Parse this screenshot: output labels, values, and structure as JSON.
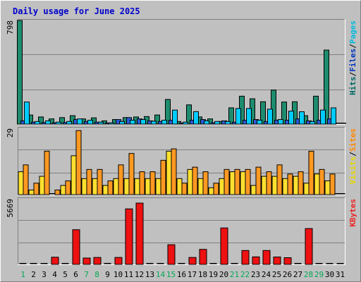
{
  "chart_data": {
    "type": "bar",
    "title": "Daily usage for June 2025",
    "categories": [
      "1",
      "2",
      "3",
      "4",
      "5",
      "6",
      "7",
      "8",
      "9",
      "10",
      "11",
      "12",
      "13",
      "14",
      "15",
      "16",
      "17",
      "18",
      "19",
      "20",
      "21",
      "22",
      "23",
      "24",
      "25",
      "26",
      "27",
      "28",
      "29",
      "30",
      "31"
    ],
    "weekend_days": [
      1,
      7,
      8,
      14,
      15,
      21,
      22,
      28,
      29
    ],
    "panels": [
      {
        "id": "top",
        "max_label": "798",
        "ylim": [
          0,
          798
        ],
        "legend": [
          {
            "text": "Hits",
            "color": "#006666"
          },
          {
            "text": "/",
            "color": "#000000"
          },
          {
            "text": "Files",
            "color": "#0033bb"
          },
          {
            "text": "/",
            "color": "#000000"
          },
          {
            "text": "Pages",
            "color": "#00bbdd"
          }
        ],
        "series": [
          {
            "name": "Hits",
            "color": "#1e8c6e",
            "values": [
              798,
              70,
              55,
              40,
              50,
              65,
              40,
              48,
              25,
              35,
              50,
              55,
              58,
              70,
              190,
              20,
              148,
              55,
              40,
              20,
              125,
              215,
              195,
              172,
              262,
              170,
              172,
              65,
              215,
              570,
              0
            ]
          },
          {
            "name": "Files",
            "color": "#2a5ad8",
            "values": [
              25,
              15,
              12,
              10,
              12,
              35,
              20,
              15,
              8,
              35,
              50,
              40,
              25,
              20,
              30,
              8,
              30,
              35,
              10,
              25,
              15,
              30,
              35,
              20,
              30,
              30,
              40,
              25,
              30,
              40,
              0
            ]
          },
          {
            "name": "Pages",
            "color": "#00ccff",
            "values": [
              170,
              20,
              25,
              15,
              20,
              40,
              30,
              15,
              10,
              20,
              30,
              35,
              22,
              30,
              108,
              15,
              96,
              25,
              20,
              20,
              120,
              120,
              30,
              115,
              35,
              100,
              95,
              20,
              108,
              125,
              0
            ]
          }
        ]
      },
      {
        "id": "mid",
        "max_label": "29",
        "ylim": [
          0,
          29
        ],
        "legend": [
          {
            "text": "Visits",
            "color": "#e8d800"
          },
          {
            "text": "/",
            "color": "#000000"
          },
          {
            "text": "Sites",
            "color": "#ff8800"
          }
        ],
        "series": [
          {
            "name": "Visits",
            "color": "#ffe030",
            "values": [
              10,
              2,
              8,
              0,
              4,
              17,
              7,
              7,
              4,
              7,
              7,
              7,
              7,
              7,
              19,
              7,
              11,
              7,
              3,
              7,
              10,
              10,
              4,
              8,
              8,
              7,
              8,
              5,
              9,
              6,
              0
            ]
          },
          {
            "name": "Sites",
            "color": "#ff9922",
            "values": [
              13,
              5,
              19,
              2,
              6,
              28,
              11,
              11,
              6,
              13,
              18,
              10,
              10,
              15,
              20,
              5,
              12,
              10,
              5,
              11,
              11,
              11,
              12,
              10,
              13,
              9,
              10,
              19,
              11,
              9,
              0
            ]
          }
        ]
      },
      {
        "id": "bot",
        "max_label": "5669",
        "ylim": [
          0,
          5669
        ],
        "legend": [
          {
            "text": "KBytes",
            "color": "#ee2222"
          }
        ],
        "series": [
          {
            "name": "KBytes",
            "color": "#ee1111",
            "values": [
              0,
              0,
              0,
              620,
              0,
              3000,
              550,
              600,
              0,
              600,
              4800,
              5300,
              0,
              0,
              1700,
              0,
              600,
              1300,
              0,
              3150,
              0,
              1200,
              650,
              1200,
              640,
              580,
              0,
              3100,
              0,
              0,
              0
            ]
          }
        ]
      }
    ]
  }
}
